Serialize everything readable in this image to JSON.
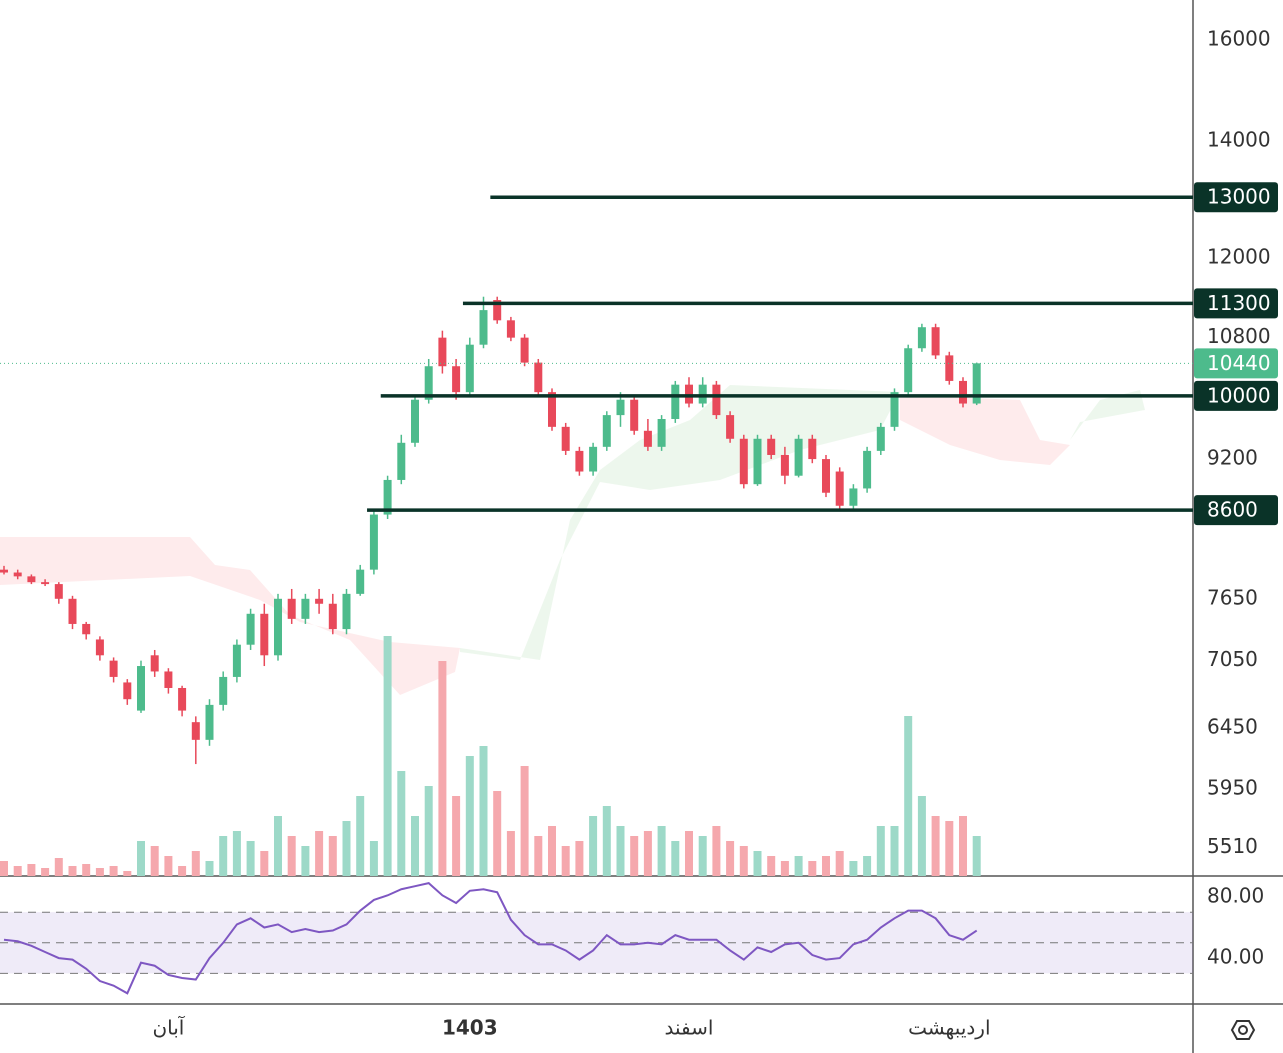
{
  "chart_data": {
    "type": "candlestick",
    "categories": [
      null,
      null,
      null,
      null,
      null,
      null,
      null,
      null,
      null,
      null,
      null,
      null,
      "آبان",
      null,
      null,
      null,
      null,
      null,
      null,
      null,
      null,
      null,
      null,
      null,
      null,
      null,
      null,
      null,
      null,
      null,
      null,
      null,
      null,
      null,
      "1403",
      null,
      null,
      null,
      null,
      null,
      null,
      null,
      null,
      null,
      null,
      null,
      null,
      null,
      null,
      null,
      "اسفند",
      null,
      null,
      null,
      null,
      null,
      null,
      null,
      null,
      null,
      null,
      null,
      null,
      null,
      null,
      null,
      null,
      null,
      null,
      "اردیبهشت",
      null,
      null
    ],
    "open": [
      7950,
      7920,
      7880,
      7820,
      7800,
      7650,
      7400,
      7250,
      7050,
      6850,
      6600,
      7100,
      6950,
      6800,
      6500,
      6350,
      6650,
      6900,
      7200,
      7500,
      7100,
      7650,
      7450,
      7650,
      7600,
      7350,
      7700,
      7950,
      8550,
      8950,
      9400,
      9950,
      10800,
      10400,
      10050,
      10700,
      11350,
      11050,
      10800,
      10450,
      10050,
      9600,
      9300,
      9050,
      9350,
      9750,
      9950,
      9550,
      9350,
      9700,
      10150,
      9900,
      10150,
      9750,
      9450,
      8900,
      9450,
      9250,
      9000,
      9450,
      9200,
      9050,
      8650,
      8850,
      9300,
      9600,
      10050,
      10650,
      10950,
      10550,
      10200,
      9900
    ],
    "high": [
      7990,
      7950,
      7900,
      7850,
      7820,
      7680,
      7420,
      7280,
      7080,
      6880,
      7050,
      7150,
      6980,
      6820,
      6550,
      6700,
      6950,
      7250,
      7550,
      7600,
      7700,
      7750,
      7700,
      7750,
      7700,
      7750,
      8000,
      8600,
      9000,
      9500,
      10000,
      10500,
      10900,
      10500,
      10800,
      11400,
      11400,
      11100,
      10850,
      10500,
      10100,
      9650,
      9350,
      9400,
      9800,
      10050,
      10000,
      9700,
      9750,
      10200,
      10250,
      10250,
      10200,
      9800,
      9500,
      9500,
      9500,
      9350,
      9500,
      9500,
      9250,
      9100,
      8900,
      9350,
      9650,
      10100,
      10700,
      11000,
      11000,
      10600,
      10250,
      10450
    ],
    "low": [
      7900,
      7850,
      7800,
      7780,
      7600,
      7350,
      7250,
      7050,
      6850,
      6650,
      6580,
      6900,
      6750,
      6550,
      6150,
      6300,
      6600,
      6850,
      7150,
      7000,
      7050,
      7400,
      7400,
      7500,
      7300,
      7300,
      7680,
      7900,
      8500,
      8900,
      9350,
      9900,
      10300,
      9950,
      10000,
      10650,
      11000,
      10750,
      10400,
      10000,
      9550,
      9250,
      9000,
      9000,
      9300,
      9600,
      9500,
      9300,
      9300,
      9650,
      9850,
      9850,
      9700,
      9400,
      8850,
      8880,
      9200,
      8900,
      8980,
      9150,
      8750,
      8600,
      8600,
      8800,
      9250,
      9550,
      10000,
      10600,
      10500,
      10150,
      9850,
      9880
    ],
    "close": [
      7920,
      7880,
      7820,
      7800,
      7650,
      7400,
      7300,
      7100,
      6900,
      6700,
      7000,
      6950,
      6800,
      6600,
      6350,
      6650,
      6900,
      7200,
      7500,
      7100,
      7650,
      7450,
      7650,
      7600,
      7350,
      7700,
      7950,
      8550,
      8950,
      9400,
      9950,
      10400,
      10400,
      10050,
      10700,
      11200,
      11050,
      10800,
      10450,
      10050,
      9600,
      9300,
      9050,
      9350,
      9750,
      9950,
      9550,
      9350,
      9700,
      10150,
      9900,
      10150,
      9750,
      9450,
      8900,
      9450,
      9250,
      9000,
      9450,
      9200,
      8800,
      8650,
      8850,
      9300,
      9600,
      10050,
      10650,
      10950,
      10550,
      10200,
      9900,
      10440
    ],
    "up_color": "#4dbb8c",
    "down_color": "#e8495a",
    "volume": [
      15,
      10,
      12,
      8,
      18,
      10,
      12,
      8,
      10,
      5,
      35,
      30,
      20,
      10,
      25,
      15,
      40,
      45,
      35,
      25,
      60,
      40,
      30,
      45,
      40,
      55,
      80,
      35,
      240,
      105,
      60,
      90,
      215,
      80,
      120,
      130,
      85,
      45,
      110,
      40,
      50,
      30,
      35,
      60,
      70,
      50,
      40,
      45,
      50,
      35,
      45,
      40,
      50,
      35,
      30,
      25,
      20,
      15,
      20,
      15,
      20,
      25,
      15,
      20,
      50,
      50,
      160,
      80,
      60,
      55,
      60,
      40
    ],
    "volume_ylim": [
      0,
      300
    ],
    "volume_up_color": "#9dd9c8",
    "volume_down_color": "#f5a8ad",
    "ylim": [
      5305,
      16868
    ],
    "log_scale": true,
    "yticks": [
      16000,
      14000,
      12000,
      10800,
      9200,
      7650,
      7050,
      6450,
      5950,
      5510
    ],
    "levels": [
      {
        "value": 13000,
        "start": 36
      },
      {
        "value": 11300,
        "start": 34
      },
      {
        "value": 10000,
        "start": 28
      },
      {
        "value": 8600,
        "start": 27
      }
    ],
    "level_color": "#0a3328",
    "rsi": [
      52,
      51,
      48,
      44,
      40,
      39,
      33,
      25,
      22,
      17,
      37,
      35,
      29,
      27,
      26,
      40,
      50,
      62,
      66,
      60,
      62,
      57,
      59,
      57,
      58,
      62,
      71,
      78,
      81,
      85,
      87,
      89,
      81,
      76,
      84,
      85,
      83,
      65,
      55,
      49,
      49,
      45,
      39,
      45,
      55,
      49,
      49,
      50,
      49,
      55,
      52,
      52,
      52,
      45,
      39,
      47,
      44,
      49,
      50,
      42,
      39,
      40,
      49,
      52,
      60,
      66,
      71,
      71,
      66,
      55,
      52,
      58
    ],
    "rsi_color": "#7e57c2",
    "rsi_ylim": [
      10,
      93
    ],
    "rsi_yticks": [
      {
        "value": 80,
        "label": "80.00"
      },
      {
        "value": 40,
        "label": "40.00"
      }
    ],
    "rsi_bands": [
      30,
      50,
      70
    ]
  }
}
